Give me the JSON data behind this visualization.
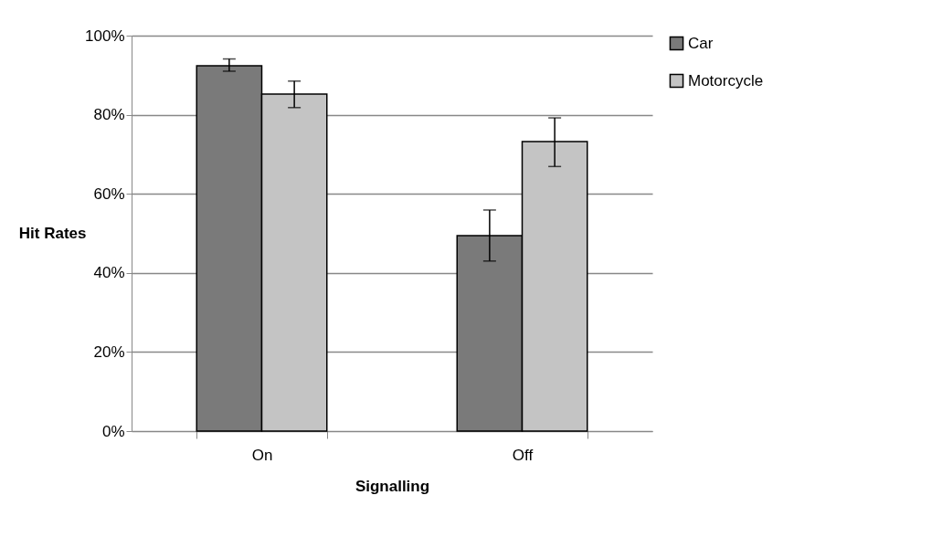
{
  "chart_data": {
    "type": "bar",
    "xlabel": "Signalling",
    "ylabel": "Hit Rates",
    "categories": [
      "On",
      "Off"
    ],
    "series": [
      {
        "name": "Car",
        "color": "#7a7a7a",
        "values": [
          92.4,
          49.4
        ],
        "errors": [
          [
            91.0,
            94.1
          ],
          [
            43.0,
            55.9
          ]
        ]
      },
      {
        "name": "Motorcycle",
        "color": "#c4c4c4",
        "values": [
          85.2,
          73.2
        ],
        "errors": [
          [
            81.8,
            88.5
          ],
          [
            66.9,
            79.2
          ]
        ]
      }
    ],
    "ylim": [
      0,
      100
    ],
    "yticks": [
      {
        "value": 0,
        "label": "0%"
      },
      {
        "value": 20,
        "label": "20%"
      },
      {
        "value": 40,
        "label": "40%"
      },
      {
        "value": 60,
        "label": "60%"
      },
      {
        "value": 80,
        "label": "80%"
      },
      {
        "value": 100,
        "label": "100%"
      }
    ],
    "grid": "y",
    "legend": "right"
  }
}
